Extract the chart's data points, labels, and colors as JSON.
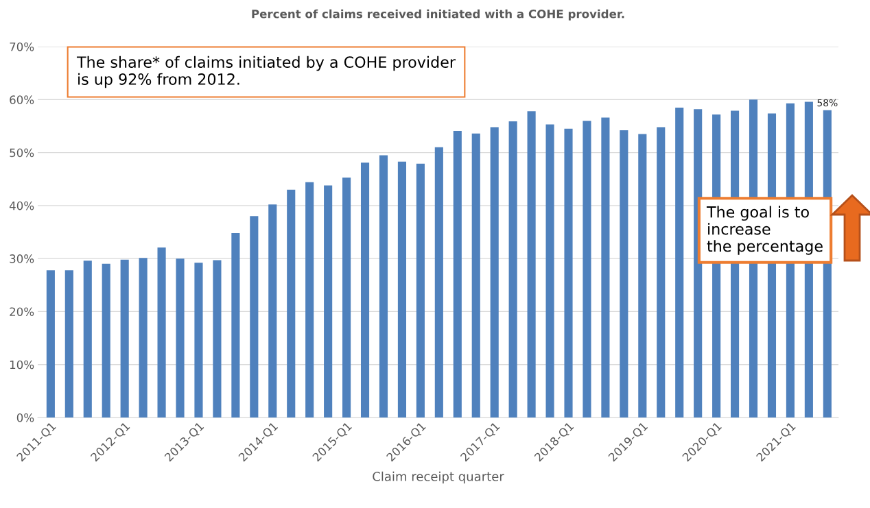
{
  "chart_data": {
    "type": "bar",
    "title": "Percent of claims received initiated with a COHE provider.",
    "xlabel": "Claim receipt quarter",
    "categories": [
      "2011-Q1",
      null,
      null,
      null,
      "2012-Q1",
      null,
      null,
      null,
      "2013-Q1",
      null,
      null,
      null,
      "2014-Q1",
      null,
      null,
      null,
      "2015-Q1",
      null,
      null,
      null,
      "2016-Q1",
      null,
      null,
      null,
      "2017-Q1",
      null,
      null,
      null,
      "2018-Q1",
      null,
      null,
      null,
      "2019-Q1",
      null,
      null,
      null,
      "2020-Q1",
      null,
      null,
      null,
      "2021-Q1",
      null,
      null
    ],
    "values": [
      27.8,
      27.8,
      29.6,
      29.0,
      29.8,
      30.1,
      32.1,
      30.0,
      29.2,
      29.7,
      34.8,
      38.0,
      40.2,
      43.0,
      44.4,
      43.8,
      45.3,
      48.1,
      49.5,
      48.3,
      47.9,
      51.0,
      54.1,
      53.6,
      54.8,
      55.9,
      57.8,
      55.3,
      54.5,
      56.0,
      56.6,
      54.2,
      53.5,
      54.8,
      58.5,
      58.2,
      57.2,
      57.9,
      60.0,
      57.4,
      59.3,
      59.6,
      58.0
    ],
    "value_labels": [
      null,
      null,
      null,
      null,
      null,
      null,
      null,
      null,
      null,
      null,
      null,
      null,
      null,
      null,
      null,
      null,
      null,
      null,
      null,
      null,
      null,
      null,
      null,
      null,
      null,
      null,
      null,
      null,
      null,
      null,
      null,
      null,
      null,
      null,
      null,
      null,
      null,
      null,
      null,
      null,
      null,
      null,
      "58%"
    ],
    "color": "#4f81bd",
    "ylim": [
      0,
      70
    ],
    "yticks": [
      {
        "value": 0,
        "label": "0%"
      },
      {
        "value": 10,
        "label": "10%"
      },
      {
        "value": 20,
        "label": "20%"
      },
      {
        "value": 30,
        "label": "30%"
      },
      {
        "value": 40,
        "label": "40%"
      },
      {
        "value": 50,
        "label": "50%"
      },
      {
        "value": 60,
        "label": "60%"
      },
      {
        "value": 70,
        "label": "70%"
      }
    ],
    "grid": "y",
    "annotations": [
      "The share* of claims initiated by a COHE provider\nis up 92% from 2012.",
      "The goal is to\nincrease\nthe percentage"
    ]
  }
}
